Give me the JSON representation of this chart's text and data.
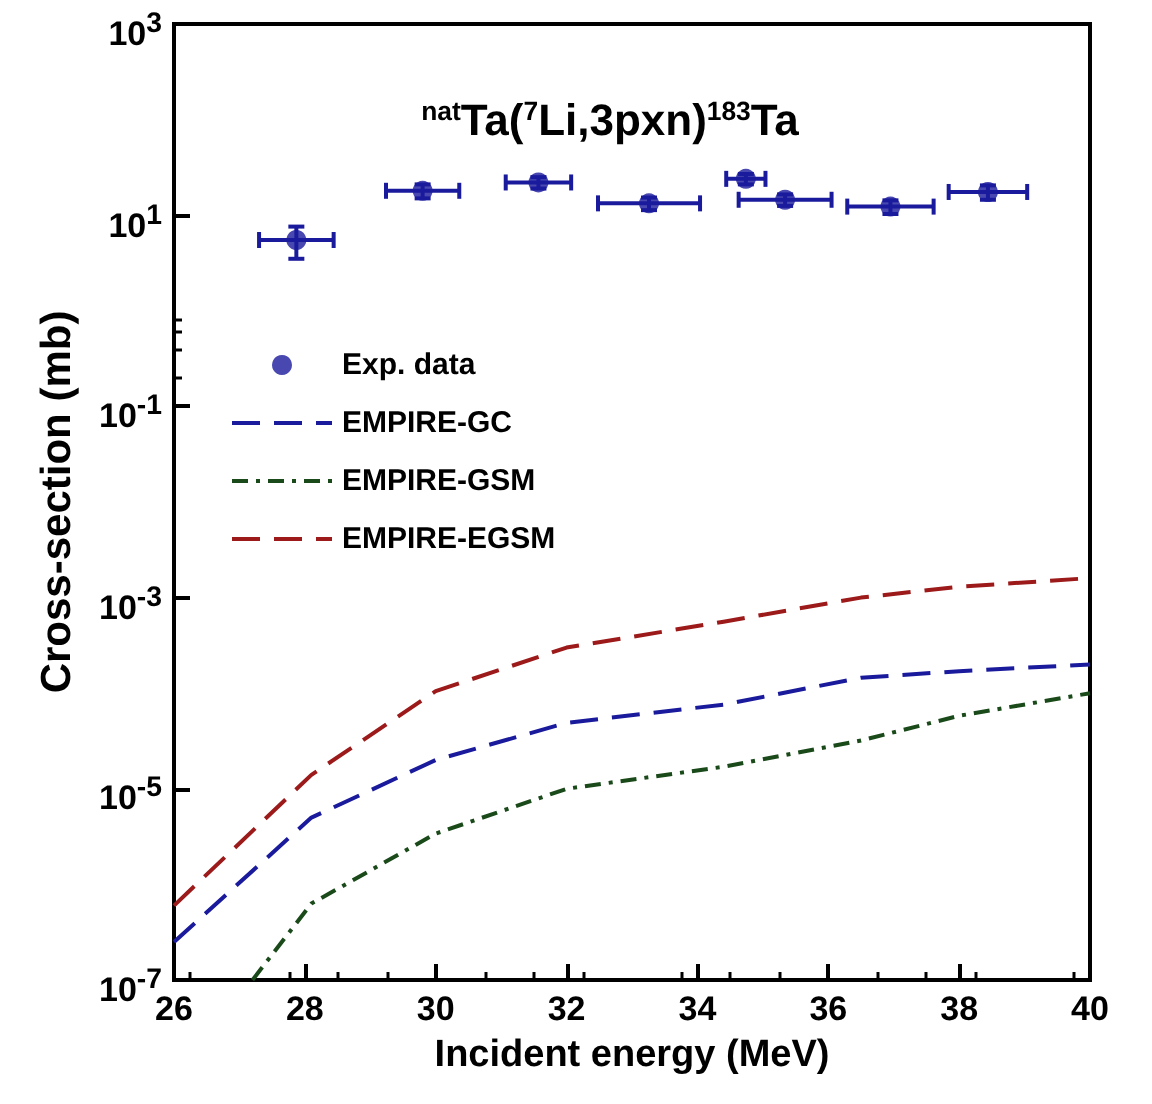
{
  "chart_data": {
    "type": "line",
    "title": "$^{nat}$Ta($^{7}$Li,3pxn)$^{183}$Ta",
    "xlabel": "Incident energy (MeV)",
    "ylabel": "Cross-section (mb)",
    "log": "y",
    "grid": false,
    "legend": "left",
    "xlim": [
      26,
      40
    ],
    "xticks": [
      26,
      28,
      30,
      32,
      34,
      36,
      38,
      40
    ],
    "ylim": [
      1e-07,
      1000
    ],
    "yticks": [
      {
        "value": 1e-07,
        "label": "10$^{-7}$"
      },
      {
        "value": 1e-05,
        "label": "10$^{-5}$"
      },
      {
        "value": 0.001,
        "label": "10$^{-3}$"
      },
      {
        "value": 0.1,
        "label": "10$^{-1}$"
      },
      {
        "value": 10,
        "label": "10$^{1}$"
      },
      {
        "value": 1000,
        "label": "10$^{3}$"
      }
    ],
    "series": [
      {
        "name": "Exp. data",
        "type": "scatter",
        "marker": "circle",
        "color": "#1a1a9c",
        "x": [
          27.87,
          29.8,
          31.57,
          33.26,
          34.74,
          35.34,
          36.95,
          38.44
        ],
        "values": [
          5.5,
          18,
          22,
          13.3,
          24,
          14.5,
          12.3,
          17.5
        ],
        "errors": [
          [
            3.5,
            7.6
          ],
          3,
          3,
          2,
          3,
          2,
          2,
          3
        ],
        "xerrors": [
          0.57,
          0.56,
          0.5,
          0.78,
          0.3,
          0.71,
          0.66,
          0.6
        ]
      },
      {
        "name": "EMPIRE-GC",
        "line_style": "dashed",
        "color": "#1a1a9c",
        "x": [
          26,
          28.1,
          30,
          32,
          34.4,
          36.5,
          38,
          40
        ],
        "values": [
          2.5e-07,
          5e-06,
          2e-05,
          4.9e-05,
          7.6e-05,
          0.000145,
          0.00017,
          0.0002
        ]
      },
      {
        "name": "EMPIRE-GSM",
        "line_style": "dotted",
        "color": "#1a4a1a",
        "x": [
          27.2,
          28.1,
          30,
          32,
          34.4,
          36.5,
          38,
          40
        ],
        "values": [
          1e-07,
          6.3e-07,
          3.4e-06,
          1e-05,
          1.7e-05,
          3.2e-05,
          5.8e-05,
          0.0001
        ]
      },
      {
        "name": "EMPIRE-EGSM",
        "line_style": "dashed",
        "color": "#9c1a1a",
        "x": [
          26,
          28.1,
          30,
          32,
          34.4,
          36.5,
          38,
          40
        ],
        "values": [
          6e-07,
          1.4e-05,
          0.000105,
          0.0003,
          0.00056,
          0.001,
          0.0013,
          0.0016
        ]
      }
    ]
  }
}
